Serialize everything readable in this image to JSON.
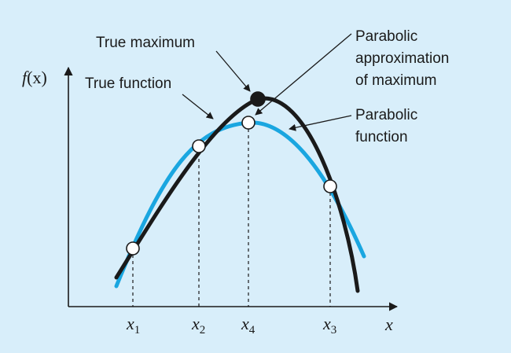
{
  "axes": {
    "y_label_fn": "f",
    "y_label_arg": "(x)",
    "x_label": "x"
  },
  "labels": {
    "true_maximum": "True maximum",
    "true_function": "True function",
    "parabolic_approx": [
      "Parabolic",
      "approximation",
      "of maximum"
    ],
    "parabolic_function": [
      "Parabolic",
      "function"
    ]
  },
  "ticks": [
    {
      "var": "x",
      "sub": "1"
    },
    {
      "var": "x",
      "sub": "2"
    },
    {
      "var": "x",
      "sub": "4"
    },
    {
      "var": "x",
      "sub": "3"
    }
  ],
  "colors": {
    "background": "#d8eefa",
    "true_curve": "#1a1a1a",
    "parabola": "#1aa6e0",
    "text": "#1a1a1a"
  }
}
